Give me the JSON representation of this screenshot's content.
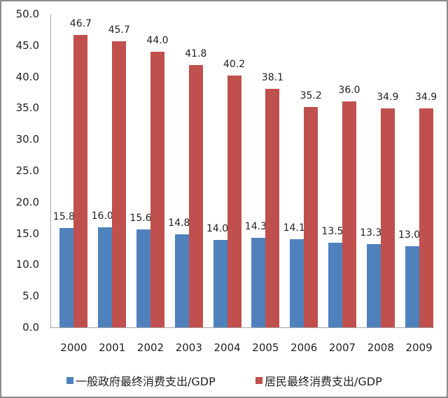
{
  "chart_data": {
    "type": "bar",
    "title": "",
    "xlabel": "",
    "ylabel": "",
    "ylim": [
      0,
      50
    ],
    "yticks": [
      "0.0",
      "5.0",
      "10.0",
      "15.0",
      "20.0",
      "25.0",
      "30.0",
      "35.0",
      "40.0",
      "45.0",
      "50.0"
    ],
    "grid": false,
    "legend_position": "bottom",
    "categories": [
      "2000",
      "2001",
      "2002",
      "2003",
      "2004",
      "2005",
      "2006",
      "2007",
      "2008",
      "2009"
    ],
    "series": [
      {
        "name": "一般政府最终消费支出/GDP",
        "color": "#4f81bd",
        "values": [
          15.8,
          16.0,
          15.6,
          14.8,
          14.0,
          14.3,
          14.1,
          13.5,
          13.3,
          13.0
        ],
        "labels": [
          "15.8",
          "16.0",
          "15.6",
          "14.8",
          "14.0",
          "14.3",
          "14.1",
          "13.5",
          "13.3",
          "13.0"
        ]
      },
      {
        "name": "居民最终消费支出/GDP",
        "color": "#c0504d",
        "values": [
          46.7,
          45.7,
          44.0,
          41.8,
          40.2,
          38.1,
          35.2,
          36.0,
          34.9,
          34.9
        ],
        "labels": [
          "46.7",
          "45.7",
          "44.0",
          "41.8",
          "40.2",
          "38.1",
          "35.2",
          "36.0",
          "34.9",
          "34.9"
        ]
      }
    ]
  }
}
